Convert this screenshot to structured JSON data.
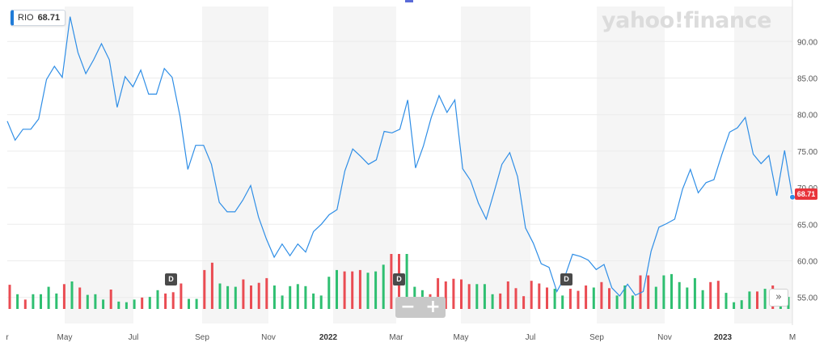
{
  "logo_text": "yahoo!finance",
  "ticker": {
    "symbol": "RIO",
    "value": "68.71"
  },
  "last_price_label": "68.71",
  "dividend_label": "D",
  "zoom": {
    "minus": "−",
    "plus": "+"
  },
  "scroll_right": "»",
  "colors": {
    "line": "#2f8ee6",
    "up": "#2fbf71",
    "down": "#ea4c53",
    "band": "#f5f5f5",
    "last": "#e8343b"
  },
  "chart_data": {
    "type": "line",
    "y_axis": {
      "ticks": [
        55,
        60,
        65,
        70,
        75,
        80,
        85,
        90
      ],
      "tick_labels": [
        "55.00",
        "60.00",
        "65.00",
        "70.00",
        "75.00",
        "80.00",
        "85.00",
        "90.00"
      ]
    },
    "x_axis": {
      "labels": [
        "r",
        "May",
        "Jul",
        "Sep",
        "Nov",
        "2022",
        "Mar",
        "May",
        "Jul",
        "Sep",
        "Nov",
        "2023",
        "M"
      ]
    },
    "series": [
      {
        "values": [
          79.1,
          76.5,
          78.0,
          78.0,
          79.4,
          84.8,
          86.6,
          85.1,
          93.4,
          88.5,
          85.6,
          87.5,
          89.7,
          87.5,
          81.0,
          85.2,
          83.8,
          86.1,
          82.8,
          82.8,
          86.3,
          85.1,
          79.8,
          72.5,
          75.8,
          75.8,
          73.2,
          68.0,
          66.7,
          66.7,
          68.3,
          70.3,
          66.0,
          63.0,
          60.5,
          62.3,
          60.7,
          62.3,
          61.2,
          64.0,
          65.0,
          66.3,
          67.0,
          72.3,
          75.3,
          74.3,
          73.2,
          73.8,
          77.7,
          77.5,
          78.0,
          82.0,
          72.7,
          75.7,
          79.6,
          82.6,
          80.3,
          82.0,
          72.6,
          71.0,
          67.9,
          65.7,
          69.4,
          73.2,
          74.8,
          71.5,
          64.5,
          62.4,
          59.6,
          59.1,
          55.8,
          57.8,
          60.9,
          60.6,
          60.1,
          58.8,
          59.5,
          56.3,
          55.2,
          56.8,
          55.3,
          55.8,
          61.3,
          64.6,
          65.1,
          65.7,
          69.8,
          72.5,
          69.3,
          70.7,
          71.1,
          74.5,
          77.6,
          78.2,
          79.6,
          74.6,
          73.3,
          74.4,
          68.9,
          75.1,
          68.71
        ]
      }
    ],
    "volume": {
      "values": [
        36,
        22,
        14,
        22,
        22,
        33,
        23,
        37,
        41,
        32,
        21,
        22,
        14,
        29,
        11,
        10,
        14,
        17,
        18,
        28,
        23,
        25,
        38,
        15,
        15,
        58,
        69,
        38,
        34,
        33,
        44,
        35,
        39,
        46,
        35,
        20,
        34,
        37,
        34,
        23,
        20,
        48,
        58,
        56,
        56,
        58,
        54,
        56,
        66,
        82,
        82,
        82,
        33,
        28,
        22,
        46,
        41,
        45,
        44,
        37,
        37,
        37,
        22,
        23,
        41,
        31,
        19,
        42,
        38,
        32,
        30,
        20,
        30,
        27,
        35,
        32,
        40,
        31,
        20,
        35,
        20,
        50,
        50,
        33,
        50,
        52,
        40,
        32,
        46,
        28,
        40,
        42,
        24,
        10,
        13,
        26,
        26,
        30,
        35,
        26,
        18
      ],
      "direction": [
        "down",
        "up",
        "down",
        "up",
        "up",
        "up",
        "up",
        "down",
        "up",
        "down",
        "up",
        "up",
        "up",
        "down",
        "up",
        "up",
        "up",
        "down",
        "up",
        "up",
        "down",
        "down",
        "down",
        "up",
        "up",
        "down",
        "down",
        "up",
        "up",
        "up",
        "down",
        "down",
        "down",
        "down",
        "up",
        "up",
        "up",
        "up",
        "up",
        "up",
        "up",
        "up",
        "up",
        "down",
        "down",
        "down",
        "up",
        "up",
        "up",
        "down",
        "down",
        "up",
        "up",
        "up",
        "down",
        "down",
        "down",
        "down",
        "down",
        "down",
        "up",
        "up",
        "up",
        "down",
        "down",
        "down",
        "down",
        "down",
        "down",
        "down",
        "up",
        "up",
        "down",
        "down",
        "down",
        "up",
        "down",
        "down",
        "up",
        "up",
        "up",
        "down",
        "down",
        "up",
        "up",
        "up",
        "up",
        "up",
        "up",
        "up",
        "down",
        "down",
        "up",
        "up",
        "up",
        "up",
        "down",
        "up",
        "down",
        "up",
        "up"
      ]
    }
  }
}
